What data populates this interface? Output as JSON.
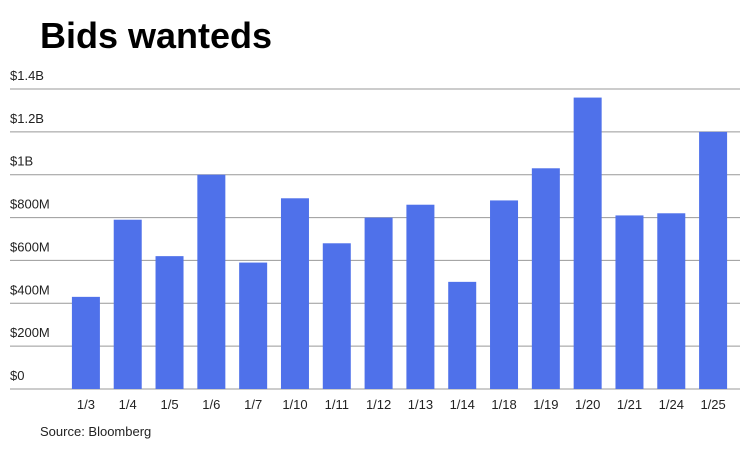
{
  "chart_data": {
    "type": "bar",
    "title": "Bids wanteds",
    "source": "Source: Bloomberg",
    "categories": [
      "1/3",
      "1/4",
      "1/5",
      "1/6",
      "1/7",
      "1/10",
      "1/11",
      "1/12",
      "1/13",
      "1/14",
      "1/18",
      "1/19",
      "1/20",
      "1/21",
      "1/24",
      "1/25"
    ],
    "values": [
      430,
      790,
      620,
      1000,
      590,
      890,
      680,
      800,
      860,
      500,
      880,
      1030,
      1360,
      810,
      820,
      1200
    ],
    "color": "#4f71ea",
    "ylim": [
      0,
      1400
    ],
    "yticks": [
      {
        "value": 0,
        "label": "$0"
      },
      {
        "value": 200,
        "label": "$200M"
      },
      {
        "value": 400,
        "label": "$400M"
      },
      {
        "value": 600,
        "label": "$600M"
      },
      {
        "value": 800,
        "label": "$800M"
      },
      {
        "value": 1000,
        "label": "$1B"
      },
      {
        "value": 1200,
        "label": "$1.2B"
      },
      {
        "value": 1400,
        "label": "$1.4B"
      }
    ],
    "grid": true
  }
}
